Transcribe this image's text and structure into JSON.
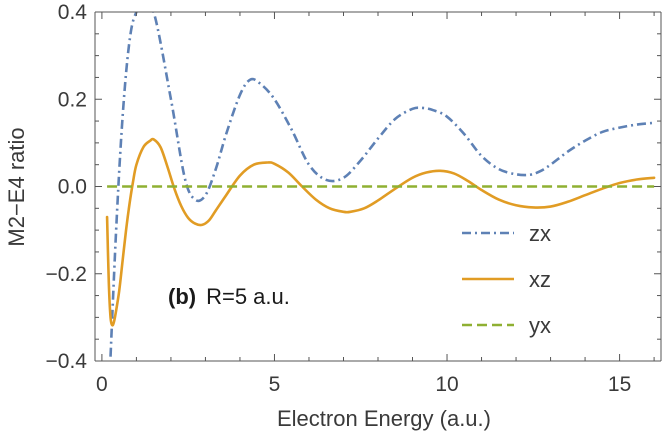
{
  "chart_data": {
    "type": "line",
    "xlabel": "Electron Energy (a.u.)",
    "ylabel": "M2−E4 ratio",
    "xlim": [
      -0.2,
      16.2
    ],
    "ylim": [
      -0.4,
      0.4
    ],
    "x_ticks": [
      0,
      5,
      10,
      15
    ],
    "x_tick_labels": [
      "0",
      "5",
      "10",
      "15"
    ],
    "y_ticks": [
      -0.4,
      -0.2,
      0.0,
      0.2,
      0.4
    ],
    "y_tick_labels": [
      "−0.4",
      "−0.2",
      "0.0",
      "0.2",
      "0.4"
    ],
    "grid": false,
    "legend_placement": "lower-right",
    "annotation": {
      "bold": "(b)",
      "text": "R=5 a.u."
    },
    "colors": {
      "zx": "#5e81b5",
      "xz": "#e19c24",
      "yx": "#8fb032",
      "axis": "#555555"
    },
    "series": [
      {
        "name": "zx",
        "style": "dash-dot",
        "x": [
          0.25,
          0.4,
          0.55,
          0.7,
          0.85,
          1.0,
          1.15,
          1.5,
          2.0,
          2.4,
          2.7,
          3.0,
          3.3,
          3.6,
          4.0,
          4.3,
          4.6,
          5.0,
          5.5,
          6.0,
          6.5,
          7.0,
          7.5,
          8.0,
          8.5,
          9.0,
          9.3,
          9.6,
          10.0,
          10.5,
          11.0,
          11.5,
          12.0,
          12.4,
          12.7,
          13.0,
          13.5,
          14.0,
          14.5,
          15.0,
          15.5,
          16.0
        ],
        "y": [
          -0.39,
          -0.12,
          0.1,
          0.26,
          0.36,
          0.4,
          0.42,
          0.4,
          0.2,
          0.02,
          -0.03,
          -0.02,
          0.04,
          0.12,
          0.21,
          0.245,
          0.235,
          0.2,
          0.13,
          0.05,
          0.015,
          0.02,
          0.06,
          0.11,
          0.155,
          0.178,
          0.18,
          0.175,
          0.16,
          0.12,
          0.07,
          0.04,
          0.028,
          0.027,
          0.035,
          0.05,
          0.08,
          0.105,
          0.125,
          0.135,
          0.142,
          0.146
        ]
      },
      {
        "name": "xz",
        "style": "solid",
        "x": [
          0.15,
          0.2,
          0.25,
          0.3,
          0.35,
          0.4,
          0.5,
          0.6,
          0.7,
          0.8,
          0.9,
          1.0,
          1.2,
          1.4,
          1.5,
          1.7,
          1.9,
          2.1,
          2.3,
          2.5,
          2.7,
          2.9,
          3.1,
          3.3,
          3.6,
          4.0,
          4.4,
          4.8,
          5.0,
          5.4,
          5.8,
          6.2,
          6.6,
          7.0,
          7.2,
          7.6,
          8.0,
          8.5,
          9.0,
          9.4,
          9.8,
          10.2,
          10.6,
          11.0,
          11.5,
          12.0,
          12.5,
          13.0,
          13.5,
          14.0,
          14.5,
          15.0,
          15.5,
          16.0
        ],
        "y": [
          -0.07,
          -0.22,
          -0.3,
          -0.318,
          -0.31,
          -0.29,
          -0.24,
          -0.17,
          -0.1,
          -0.04,
          0.01,
          0.05,
          0.09,
          0.105,
          0.108,
          0.09,
          0.045,
          -0.005,
          -0.045,
          -0.072,
          -0.085,
          -0.088,
          -0.078,
          -0.055,
          -0.02,
          0.025,
          0.05,
          0.055,
          0.052,
          0.032,
          0.0,
          -0.03,
          -0.05,
          -0.058,
          -0.058,
          -0.05,
          -0.032,
          -0.005,
          0.02,
          0.032,
          0.036,
          0.03,
          0.013,
          -0.008,
          -0.03,
          -0.043,
          -0.048,
          -0.046,
          -0.035,
          -0.02,
          -0.005,
          0.008,
          0.016,
          0.02
        ]
      },
      {
        "name": "yx",
        "style": "dashed",
        "x": [
          0.15,
          16.0
        ],
        "y": [
          0.0,
          0.0
        ]
      }
    ]
  }
}
